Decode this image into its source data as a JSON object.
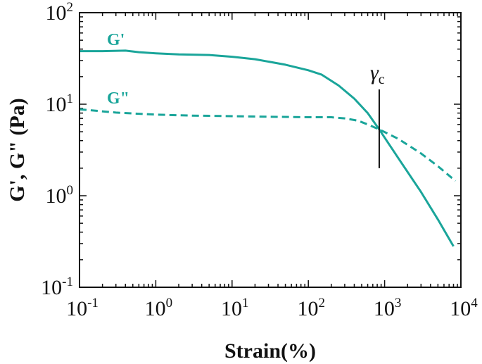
{
  "chart_data": {
    "type": "line",
    "title": "",
    "xlabel": "Strain(%)",
    "ylabel": "G', G\" (Pa)",
    "xscale": "log",
    "yscale": "log",
    "xlim": [
      0.1,
      10000
    ],
    "ylim": [
      0.1,
      100
    ],
    "grid": false,
    "x_tick_labels": [
      {
        "base": "10",
        "exp": "-1",
        "value": 0.1
      },
      {
        "base": "10",
        "exp": "0",
        "value": 1
      },
      {
        "base": "10",
        "exp": "1",
        "value": 10
      },
      {
        "base": "10",
        "exp": "2",
        "value": 100
      },
      {
        "base": "10",
        "exp": "3",
        "value": 1000
      },
      {
        "base": "10",
        "exp": "4",
        "value": 10000
      }
    ],
    "y_tick_labels": [
      {
        "base": "10",
        "exp": "-1",
        "value": 0.1
      },
      {
        "base": "10",
        "exp": "0",
        "value": 1
      },
      {
        "base": "10",
        "exp": "1",
        "value": 10
      },
      {
        "base": "10",
        "exp": "2",
        "value": 100
      }
    ],
    "series": [
      {
        "name": "G'",
        "label": "G'",
        "style": "solid",
        "color": "#1aa59a",
        "x": [
          0.1,
          0.2,
          0.4,
          0.6,
          1,
          2,
          5,
          10,
          20,
          50,
          100,
          150,
          250,
          400,
          600,
          850,
          1500,
          3000,
          5000,
          8000
        ],
        "y": [
          38,
          38,
          38.5,
          37,
          36,
          35,
          34.5,
          33,
          31,
          27,
          23.5,
          21,
          16,
          11.5,
          8,
          5.3,
          2.6,
          1.1,
          0.55,
          0.28
        ]
      },
      {
        "name": "G\"",
        "label": "G\"",
        "style": "dashed",
        "color": "#1aa59a",
        "x": [
          0.1,
          0.3,
          1,
          3,
          10,
          30,
          100,
          200,
          300,
          450,
          600,
          850,
          1500,
          3000,
          5000,
          8500
        ],
        "y": [
          8.8,
          8.1,
          7.7,
          7.5,
          7.4,
          7.3,
          7.2,
          7.2,
          7.0,
          6.6,
          6.0,
          5.3,
          4.2,
          2.9,
          2.1,
          1.45
        ]
      }
    ],
    "annotations": [
      {
        "text": "γ",
        "subscript": "c",
        "x": 850,
        "y_min": 2.0,
        "y_max": 14.5
      }
    ]
  }
}
